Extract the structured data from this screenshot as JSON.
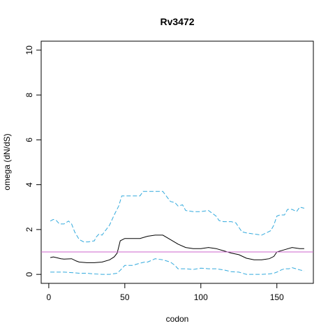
{
  "chart_data": {
    "type": "line",
    "title": "Rv3472",
    "xlabel": "codon",
    "ylabel": "omega (dN/dS)",
    "xlim": [
      -5,
      174
    ],
    "ylim": [
      -0.4,
      10.4
    ],
    "xticks": [
      0,
      50,
      100,
      150
    ],
    "yticks": [
      0,
      2,
      4,
      6,
      8,
      10
    ],
    "grid": false,
    "legend": "none",
    "reference_line": {
      "y": 1,
      "color": "#cc66cc"
    },
    "series": [
      {
        "key": "upper",
        "color": "#33aadd",
        "dash": "dashed",
        "x": [
          1,
          3,
          5,
          7,
          10,
          13,
          15,
          17,
          20,
          23,
          26,
          30,
          31,
          33,
          35,
          40,
          43,
          46,
          48,
          50,
          55,
          60,
          62,
          65,
          70,
          75,
          80,
          83,
          85,
          88,
          90,
          95,
          100,
          105,
          110,
          112,
          115,
          120,
          123,
          125,
          127,
          130,
          135,
          140,
          143,
          146,
          148,
          150,
          152,
          155,
          157,
          160,
          163,
          165,
          168
        ],
        "values": [
          2.38,
          2.45,
          2.4,
          2.25,
          2.25,
          2.38,
          2.25,
          1.9,
          1.55,
          1.45,
          1.45,
          1.5,
          1.65,
          1.8,
          1.75,
          2.2,
          2.65,
          3.05,
          3.5,
          3.5,
          3.5,
          3.5,
          3.7,
          3.7,
          3.7,
          3.7,
          3.25,
          3.2,
          3.05,
          3.1,
          2.85,
          2.8,
          2.8,
          2.85,
          2.6,
          2.4,
          2.35,
          2.35,
          2.3,
          2.1,
          1.9,
          1.85,
          1.8,
          1.75,
          1.85,
          1.95,
          2.2,
          2.6,
          2.65,
          2.65,
          2.9,
          2.9,
          2.8,
          3.0,
          2.95
        ]
      },
      {
        "key": "estimate",
        "color": "#000000",
        "dash": "solid",
        "x": [
          1,
          3,
          5,
          8,
          10,
          15,
          18,
          20,
          25,
          30,
          35,
          40,
          43,
          45,
          47,
          50,
          55,
          60,
          65,
          70,
          75,
          80,
          85,
          90,
          95,
          100,
          105,
          110,
          115,
          120,
          125,
          130,
          135,
          140,
          145,
          148,
          150,
          155,
          160,
          165,
          168
        ],
        "values": [
          0.75,
          0.78,
          0.75,
          0.7,
          0.68,
          0.7,
          0.6,
          0.55,
          0.52,
          0.52,
          0.55,
          0.65,
          0.78,
          0.95,
          1.5,
          1.6,
          1.6,
          1.6,
          1.7,
          1.75,
          1.75,
          1.55,
          1.35,
          1.2,
          1.15,
          1.15,
          1.2,
          1.15,
          1.05,
          0.95,
          0.88,
          0.72,
          0.65,
          0.65,
          0.7,
          0.8,
          1.0,
          1.1,
          1.2,
          1.15,
          1.15
        ]
      },
      {
        "key": "lower",
        "color": "#33aadd",
        "dash": "dashed",
        "x": [
          1,
          5,
          10,
          15,
          20,
          25,
          30,
          35,
          40,
          45,
          48,
          50,
          55,
          60,
          63,
          65,
          70,
          75,
          80,
          83,
          85,
          90,
          95,
          100,
          105,
          110,
          115,
          120,
          125,
          130,
          135,
          140,
          145,
          148,
          150,
          153,
          155,
          158,
          160,
          165,
          168
        ],
        "values": [
          0.1,
          0.1,
          0.1,
          0.08,
          0.05,
          0.05,
          0.02,
          0.0,
          0.0,
          0.05,
          0.25,
          0.4,
          0.4,
          0.5,
          0.55,
          0.55,
          0.7,
          0.65,
          0.55,
          0.4,
          0.25,
          0.25,
          0.22,
          0.28,
          0.25,
          0.25,
          0.2,
          0.12,
          0.1,
          0.0,
          0.0,
          0.0,
          0.02,
          0.05,
          0.1,
          0.2,
          0.25,
          0.25,
          0.3,
          0.2,
          0.15
        ]
      }
    ]
  }
}
